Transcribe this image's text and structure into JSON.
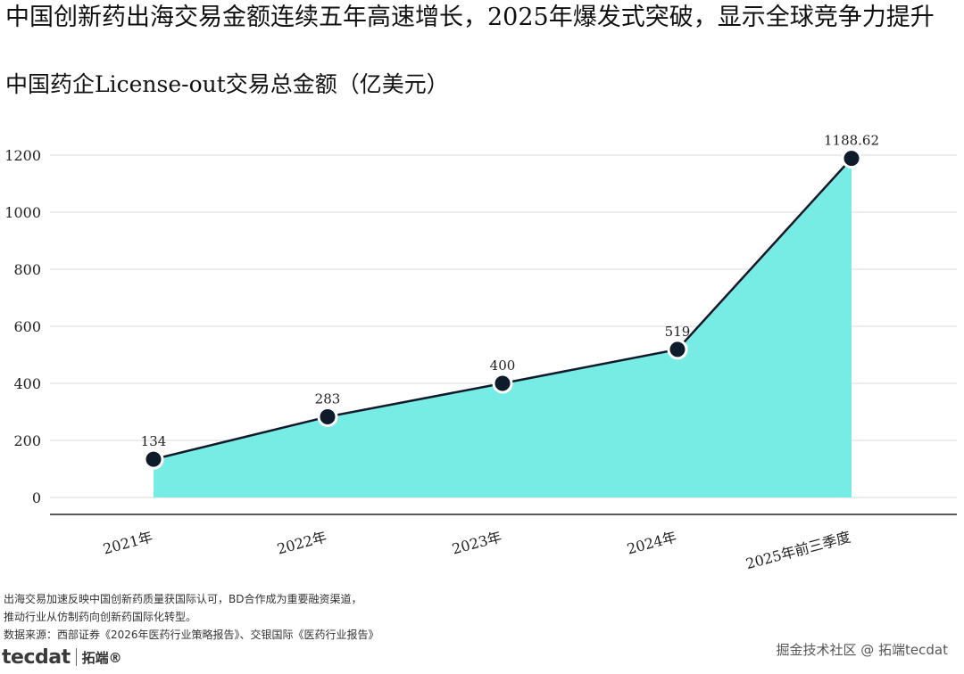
{
  "header": {
    "title": "中国创新药出海交易金额连续五年高速增长，2025年爆发式突破，显示全球竞争力提升",
    "subtitle": "中国药企License-out交易总金额（亿美元）"
  },
  "chart_data": {
    "type": "area",
    "categories": [
      "2021年",
      "2022年",
      "2023年",
      "2024年",
      "2025年前三季度"
    ],
    "values": [
      134,
      283,
      400,
      519,
      1188.62
    ],
    "data_labels": [
      "134",
      "283",
      "400",
      "519",
      "1188.62"
    ],
    "yticks": [
      "0",
      "200",
      "400",
      "600",
      "800",
      "1000",
      "1200"
    ],
    "ylim": [
      0,
      1200
    ],
    "grid": true,
    "legend": "none",
    "colors": {
      "area": "#76ece4",
      "line": "#0d1b2a",
      "marker": "#0d1b2a",
      "marker_edge": "#ffffff",
      "grid": "#d9d9d9"
    }
  },
  "footer": {
    "note_line1": "出海交易加速反映中国创新药质量获国际认可，BD合作成为重要融资渠道，",
    "note_line2": "推动行业从仿制药向创新药国际化转型。",
    "source": "数据来源：西部证券《2026年医药行业策略报告》、交银国际《医药行业报告》",
    "logo_text": "tecdat",
    "logo_cn": "拓端®",
    "watermark": "掘金技术社区 @ 拓端tecdat"
  }
}
